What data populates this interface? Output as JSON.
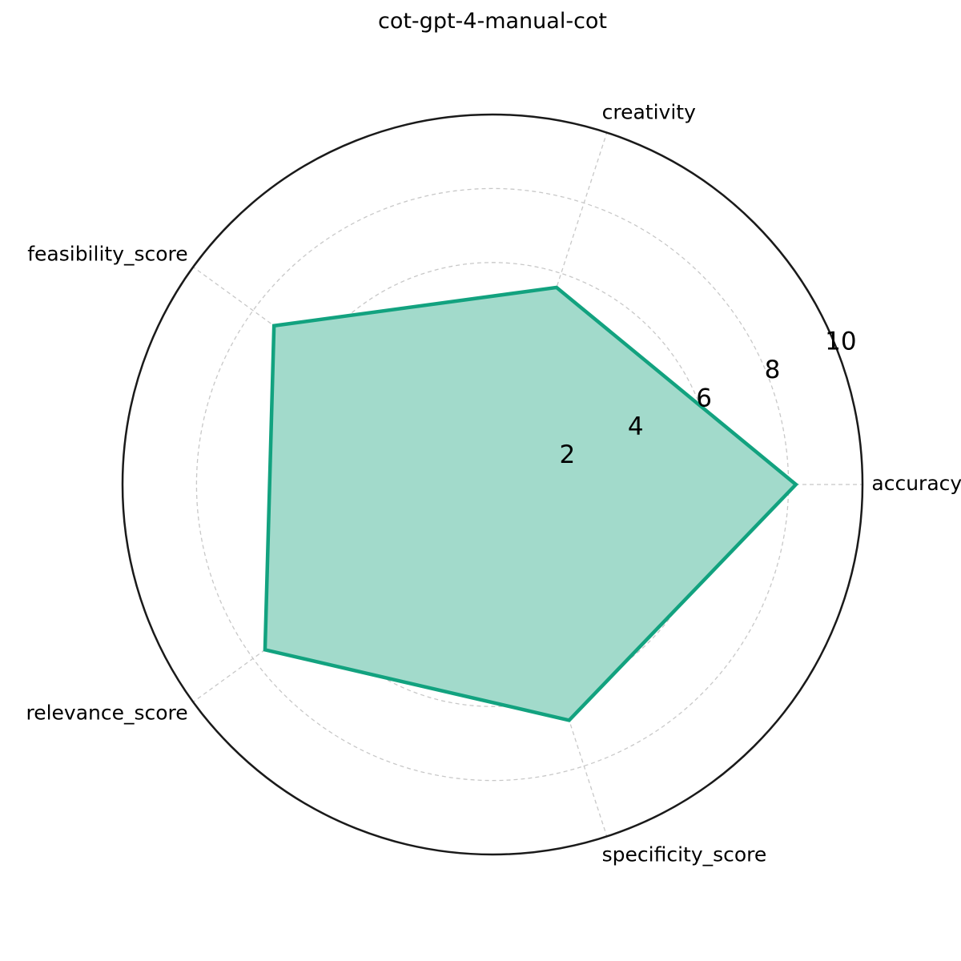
{
  "chart_data": {
    "type": "radar",
    "title": "cot-gpt-4-manual-cot",
    "categories": [
      "accuracy_score",
      "creativity",
      "feasibility_score",
      "relevance_score",
      "specificity_score"
    ],
    "series": [
      {
        "values": [
          8.2,
          5.6,
          7.3,
          7.6,
          6.7
        ]
      }
    ],
    "rlim": [
      0,
      10
    ],
    "rticks": [
      2,
      4,
      6,
      8,
      10
    ],
    "rtick_labels": [
      "2",
      "4",
      "6",
      "8",
      "10"
    ],
    "grid": true,
    "colors": {
      "series": "#12a27f",
      "fill": "#a2dacb",
      "grid": "#c8c8c8",
      "frame": "#1a1a1a"
    }
  }
}
